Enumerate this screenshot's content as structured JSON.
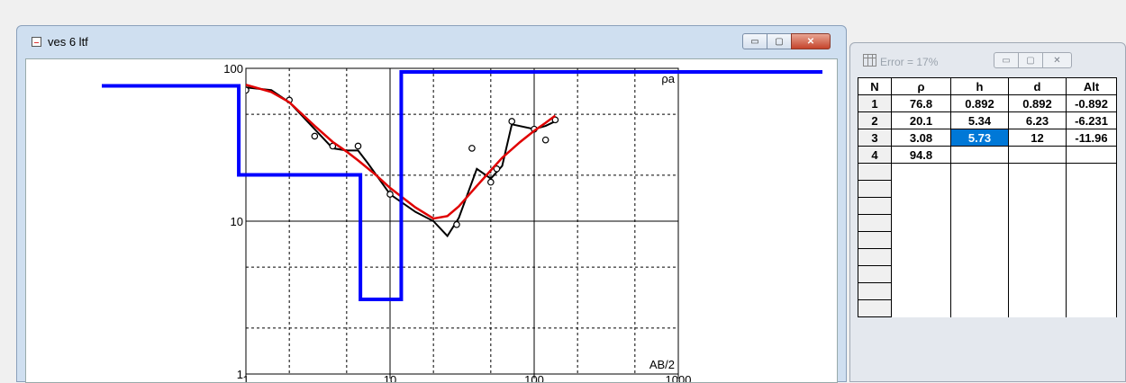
{
  "main_window": {
    "title": "ves 6 ltf",
    "buttons": {
      "minimize": "▭",
      "maximize": "▢",
      "close": "✕"
    }
  },
  "chart_data": {
    "type": "line",
    "xscale": "log",
    "yscale": "log",
    "xlim": [
      1,
      1000
    ],
    "ylim": [
      1,
      100
    ],
    "x_ticks": [
      "1",
      "10",
      "100",
      "1000"
    ],
    "y_ticks": [
      "100",
      "10",
      "1"
    ],
    "ylabel": "ρa",
    "xlabel": "AB/2",
    "grid": true,
    "series": [
      {
        "kind": "measured",
        "color": "#000000",
        "x": [
          1,
          1.5,
          2,
          3,
          4,
          5,
          6,
          7,
          10,
          15,
          20,
          25,
          30,
          40,
          50,
          60,
          70,
          100,
          120,
          140
        ],
        "y": [
          75,
          72,
          60,
          40,
          30,
          29,
          29,
          24,
          15,
          11.5,
          10,
          8,
          10.5,
          22,
          19,
          23,
          43,
          40,
          42,
          45
        ]
      },
      {
        "kind": "samples",
        "color": "#000000",
        "x": [
          1,
          2,
          3,
          4,
          6,
          10,
          29,
          37,
          50,
          55,
          70,
          100,
          120,
          140
        ],
        "y": [
          72,
          62,
          36,
          31,
          31,
          15,
          9.5,
          30,
          18,
          22,
          45,
          40,
          34,
          46
        ]
      },
      {
        "kind": "model",
        "color": "#e00000",
        "x": [
          1,
          1.5,
          2,
          3,
          4,
          5,
          6,
          8,
          10,
          15,
          20,
          25,
          30,
          40,
          50,
          60,
          80,
          100,
          120,
          140
        ],
        "y": [
          78,
          70,
          60,
          42,
          33,
          28.5,
          25,
          20,
          16.5,
          12.3,
          10.4,
          10.8,
          12.5,
          17,
          21.5,
          26,
          33,
          39,
          44,
          49
        ]
      },
      {
        "kind": "layers",
        "color": "#0000ff",
        "x": [
          0.1,
          0.892,
          0.892,
          6.23,
          6.23,
          11.96,
          11.96,
          10000
        ],
        "y": [
          76.8,
          76.8,
          20.1,
          20.1,
          3.08,
          3.08,
          94.8,
          94.8
        ]
      }
    ]
  },
  "table_window": {
    "title": "Error = 17%",
    "buttons": {
      "minimize": "▭",
      "maximize": "▢",
      "close": "✕"
    },
    "columns": [
      "N",
      "ρ",
      "h",
      "d",
      "Alt"
    ],
    "rows": [
      [
        "1",
        "76.8",
        "0.892",
        "0.892",
        "-0.892"
      ],
      [
        "2",
        "20.1",
        "5.34",
        "6.23",
        "-6.231"
      ],
      [
        "3",
        "3.08",
        "5.73",
        "12",
        "-11.96"
      ],
      [
        "4",
        "94.8",
        "",
        "",
        ""
      ]
    ]
  }
}
